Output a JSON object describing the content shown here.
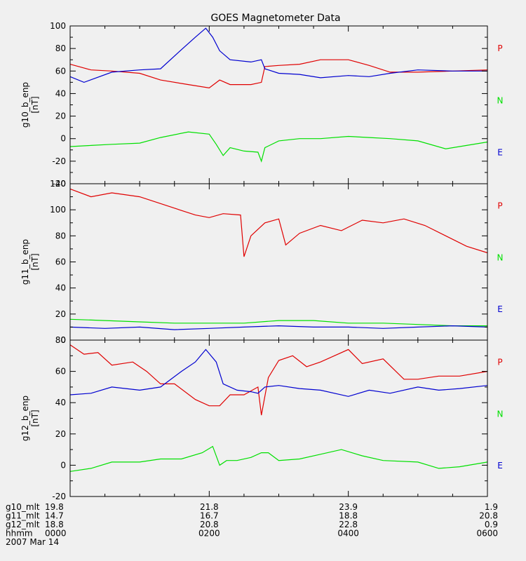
{
  "chart_data": {
    "type": "line",
    "title": "GOES Magnetometer Data",
    "colors": {
      "P": "#e00000",
      "N": "#00e000",
      "E": "#0000d0",
      "axis": "#000000",
      "background": "#f0f0f0"
    },
    "x_range": [
      0,
      6
    ],
    "x_unit": "hours since 0000 UT",
    "panels": [
      {
        "ylabel": "g10_b_enp",
        "yunit": "[nT]",
        "ylim": [
          -40,
          100
        ],
        "yticks": [
          -40,
          -20,
          0,
          20,
          40,
          60,
          80,
          100
        ],
        "legend": [
          "P",
          "N",
          "E"
        ],
        "series": [
          {
            "name": "P",
            "x": [
              0,
              0.3,
              0.6,
              1.0,
              1.3,
              1.7,
              2.0,
              2.15,
              2.3,
              2.6,
              2.75,
              2.8,
              3.0,
              3.3,
              3.6,
              4.0,
              4.3,
              4.6,
              5.0,
              5.5,
              6.0
            ],
            "y": [
              66,
              61,
              60,
              58,
              52,
              48,
              45,
              52,
              48,
              48,
              50,
              64,
              65,
              66,
              70,
              70,
              65,
              59,
              59,
              60,
              61
            ]
          },
          {
            "name": "N",
            "x": [
              0,
              0.3,
              0.6,
              1.0,
              1.3,
              1.7,
              2.0,
              2.1,
              2.2,
              2.3,
              2.5,
              2.7,
              2.75,
              2.8,
              3.0,
              3.3,
              3.6,
              4.0,
              4.3,
              4.6,
              5.0,
              5.4,
              5.7,
              6.0
            ],
            "y": [
              -7,
              -6,
              -5,
              -4,
              1,
              6,
              4,
              -5,
              -15,
              -8,
              -11,
              -12,
              -20,
              -8,
              -2,
              0,
              0,
              2,
              1,
              0,
              -2,
              -9,
              -6,
              -3
            ]
          },
          {
            "name": "E",
            "x": [
              0,
              0.2,
              0.6,
              1.0,
              1.3,
              1.6,
              1.8,
              1.95,
              2.05,
              2.15,
              2.3,
              2.6,
              2.75,
              2.8,
              3.0,
              3.3,
              3.6,
              4.0,
              4.3,
              4.6,
              5.0,
              5.5,
              6.0
            ],
            "y": [
              55,
              50,
              59,
              61,
              62,
              79,
              90,
              98,
              90,
              78,
              70,
              68,
              70,
              62,
              58,
              57,
              54,
              56,
              55,
              58,
              61,
              60,
              60
            ]
          }
        ]
      },
      {
        "ylabel": "g11_b_enp",
        "yunit": "[nT]",
        "ylim": [
          0,
          120
        ],
        "yticks": [
          0,
          20,
          40,
          60,
          80,
          100,
          120
        ],
        "legend": [
          "P",
          "N",
          "E"
        ],
        "series": [
          {
            "name": "P",
            "x": [
              0,
              0.3,
              0.6,
              1.0,
              1.4,
              1.8,
              2.0,
              2.2,
              2.45,
              2.5,
              2.6,
              2.8,
              3.0,
              3.1,
              3.3,
              3.6,
              3.9,
              4.2,
              4.5,
              4.8,
              5.1,
              5.4,
              5.7,
              6.0
            ],
            "y": [
              116,
              110,
              113,
              110,
              103,
              96,
              94,
              97,
              96,
              64,
              80,
              90,
              93,
              73,
              82,
              88,
              84,
              92,
              90,
              93,
              88,
              80,
              72,
              67
            ]
          },
          {
            "name": "N",
            "x": [
              0,
              0.5,
              1.0,
              1.5,
              2.0,
              2.5,
              3.0,
              3.5,
              4.0,
              4.5,
              5.0,
              5.5,
              6.0
            ],
            "y": [
              16,
              15,
              14,
              13,
              13,
              13,
              15,
              15,
              13,
              13,
              12,
              11,
              11
            ]
          },
          {
            "name": "E",
            "x": [
              0,
              0.5,
              1.0,
              1.5,
              2.0,
              2.5,
              3.0,
              3.5,
              4.0,
              4.5,
              5.0,
              5.5,
              6.0
            ],
            "y": [
              10,
              9,
              10,
              8,
              9,
              10,
              11,
              10,
              10,
              9,
              10,
              11,
              10
            ]
          }
        ]
      },
      {
        "ylabel": "g12_b_enp",
        "yunit": "[nT]",
        "ylim": [
          -20,
          80
        ],
        "yticks": [
          -20,
          0,
          20,
          40,
          60,
          80
        ],
        "legend": [
          "P",
          "N",
          "E"
        ],
        "series": [
          {
            "name": "P",
            "x": [
              0,
              0.2,
              0.4,
              0.6,
              0.9,
              1.1,
              1.3,
              1.5,
              1.8,
              2.0,
              2.15,
              2.3,
              2.5,
              2.7,
              2.75,
              2.85,
              3.0,
              3.2,
              3.4,
              3.6,
              4.0,
              4.2,
              4.5,
              4.8,
              5.0,
              5.3,
              5.6,
              6.0
            ],
            "y": [
              77,
              71,
              72,
              64,
              66,
              60,
              52,
              52,
              42,
              38,
              38,
              45,
              45,
              50,
              32,
              56,
              67,
              70,
              63,
              66,
              74,
              65,
              68,
              55,
              55,
              57,
              57,
              60
            ]
          },
          {
            "name": "N",
            "x": [
              0,
              0.3,
              0.6,
              1.0,
              1.3,
              1.6,
              1.9,
              2.05,
              2.15,
              2.25,
              2.4,
              2.6,
              2.75,
              2.85,
              3.0,
              3.3,
              3.6,
              3.9,
              4.2,
              4.5,
              5.0,
              5.3,
              5.6,
              6.0
            ],
            "y": [
              -4,
              -2,
              2,
              2,
              4,
              4,
              8,
              12,
              0,
              3,
              3,
              5,
              8,
              8,
              3,
              4,
              7,
              10,
              6,
              3,
              2,
              -2,
              -1,
              2
            ]
          },
          {
            "name": "E",
            "x": [
              0,
              0.3,
              0.6,
              1.0,
              1.3,
              1.6,
              1.8,
              1.95,
              2.1,
              2.2,
              2.4,
              2.6,
              2.7,
              2.8,
              3.0,
              3.3,
              3.6,
              4.0,
              4.3,
              4.6,
              5.0,
              5.3,
              5.6,
              6.0
            ],
            "y": [
              45,
              46,
              50,
              48,
              50,
              60,
              66,
              74,
              66,
              52,
              48,
              47,
              46,
              50,
              51,
              49,
              48,
              44,
              48,
              46,
              50,
              48,
              49,
              51
            ]
          }
        ]
      }
    ],
    "x_axis_rows": [
      {
        "label": "g10_mlt",
        "values": [
          "19.8",
          "21.8",
          "23.9",
          "1.9"
        ]
      },
      {
        "label": "g11_mlt",
        "values": [
          "14.7",
          "16.7",
          "18.8",
          "20.8"
        ]
      },
      {
        "label": "g12_mlt",
        "values": [
          "18.8",
          "20.8",
          "22.8",
          "0.9"
        ]
      },
      {
        "label": "hhmm",
        "values": [
          "0000",
          "0200",
          "0400",
          "0600"
        ]
      }
    ],
    "date": "2007 Mar 14"
  }
}
